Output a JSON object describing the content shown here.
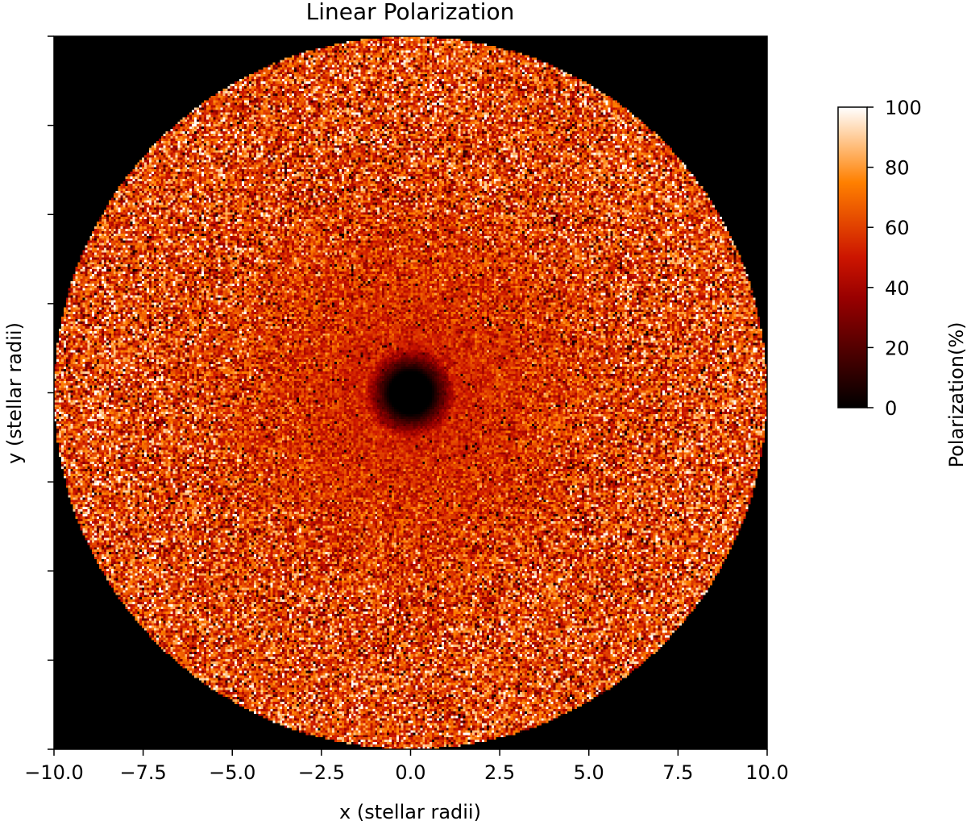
{
  "chart_data": {
    "type": "heatmap",
    "title": "Linear Polarization",
    "xlabel": "x (stellar radii)",
    "ylabel": "y (stellar radii)",
    "xlim": [
      -10.0,
      10.0
    ],
    "ylim": [
      -10.0,
      10.0
    ],
    "x_ticks": [
      "−10.0",
      "−7.5",
      "−5.0",
      "−2.5",
      "0.0",
      "2.5",
      "5.0",
      "7.5",
      "10.0"
    ],
    "x_tick_values": [
      -10.0,
      -7.5,
      -5.0,
      -2.5,
      0.0,
      2.5,
      5.0,
      7.5,
      10.0
    ],
    "y_tick_values": [
      -10.0,
      -7.5,
      -5.0,
      -2.5,
      0.0,
      2.5,
      5.0,
      7.5,
      10.0
    ],
    "y_ticks_labeled": false,
    "colorbar": {
      "label": "Polarization(%)",
      "min": 0,
      "max": 100,
      "ticks": [
        "0",
        "20",
        "40",
        "60",
        "80",
        "100"
      ],
      "tick_values": [
        0,
        20,
        40,
        60,
        80,
        100
      ],
      "colormap": "gist_heat",
      "colors": [
        "#000000",
        "#800000",
        "#ff0000",
        "#ff8000",
        "#ffffff"
      ]
    },
    "field": {
      "disk_radius": 10.0,
      "outside_value": 0,
      "center_hole_radius": 0.6,
      "mean_polarization_center": 45,
      "mean_polarization_edge": 65,
      "noise": "high, pixel-scale"
    },
    "grid": false
  }
}
